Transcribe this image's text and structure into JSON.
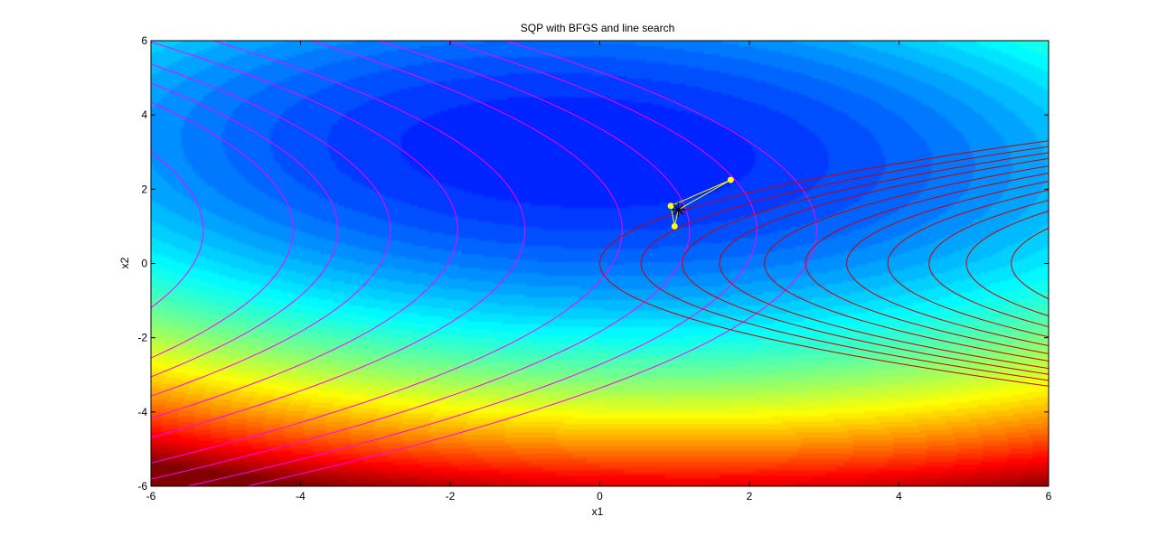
{
  "chart_data": {
    "type": "contour",
    "title": "SQP with BFGS and line search",
    "xlabel": "x1",
    "ylabel": "x2",
    "xlim": [
      -6,
      6
    ],
    "ylim": [
      -6,
      6
    ],
    "x_ticks": [
      "-6",
      "-4",
      "-2",
      "0",
      "2",
      "4",
      "6"
    ],
    "y_ticks": [
      "6",
      "4",
      "2",
      "0",
      "-2",
      "-4",
      "-6"
    ],
    "colormap": "jet",
    "background_field": {
      "description": "filled contours, minimum near (-0.3, 3)",
      "min_point": [
        -0.3,
        3.0
      ],
      "levels": 40
    },
    "constraint_contours": [
      {
        "name": "magenta family",
        "color": "#ff00ff",
        "vertex_x1": [
          -5.3,
          -4.1,
          -3.5,
          -2.8,
          -1.9,
          -1.0,
          0.3,
          1.2,
          2.1,
          2.9
        ],
        "vertex_x2": 0.9
      },
      {
        "name": "red family",
        "color": "#cc0000",
        "vertex_x1": [
          0.0,
          0.55,
          1.1,
          1.6,
          2.2,
          2.75,
          3.3,
          3.85,
          4.4,
          4.9,
          5.5
        ],
        "vertex_x2": 0.0
      }
    ],
    "iterates": {
      "color": "#ffff00",
      "x1": [
        1.75,
        0.95,
        1.0,
        1.05
      ],
      "x2": [
        2.25,
        1.55,
        1.0,
        1.45
      ]
    },
    "solution_marker": {
      "x1": 1.05,
      "x2": 1.45,
      "symbol": "star",
      "color": "#000000"
    }
  }
}
